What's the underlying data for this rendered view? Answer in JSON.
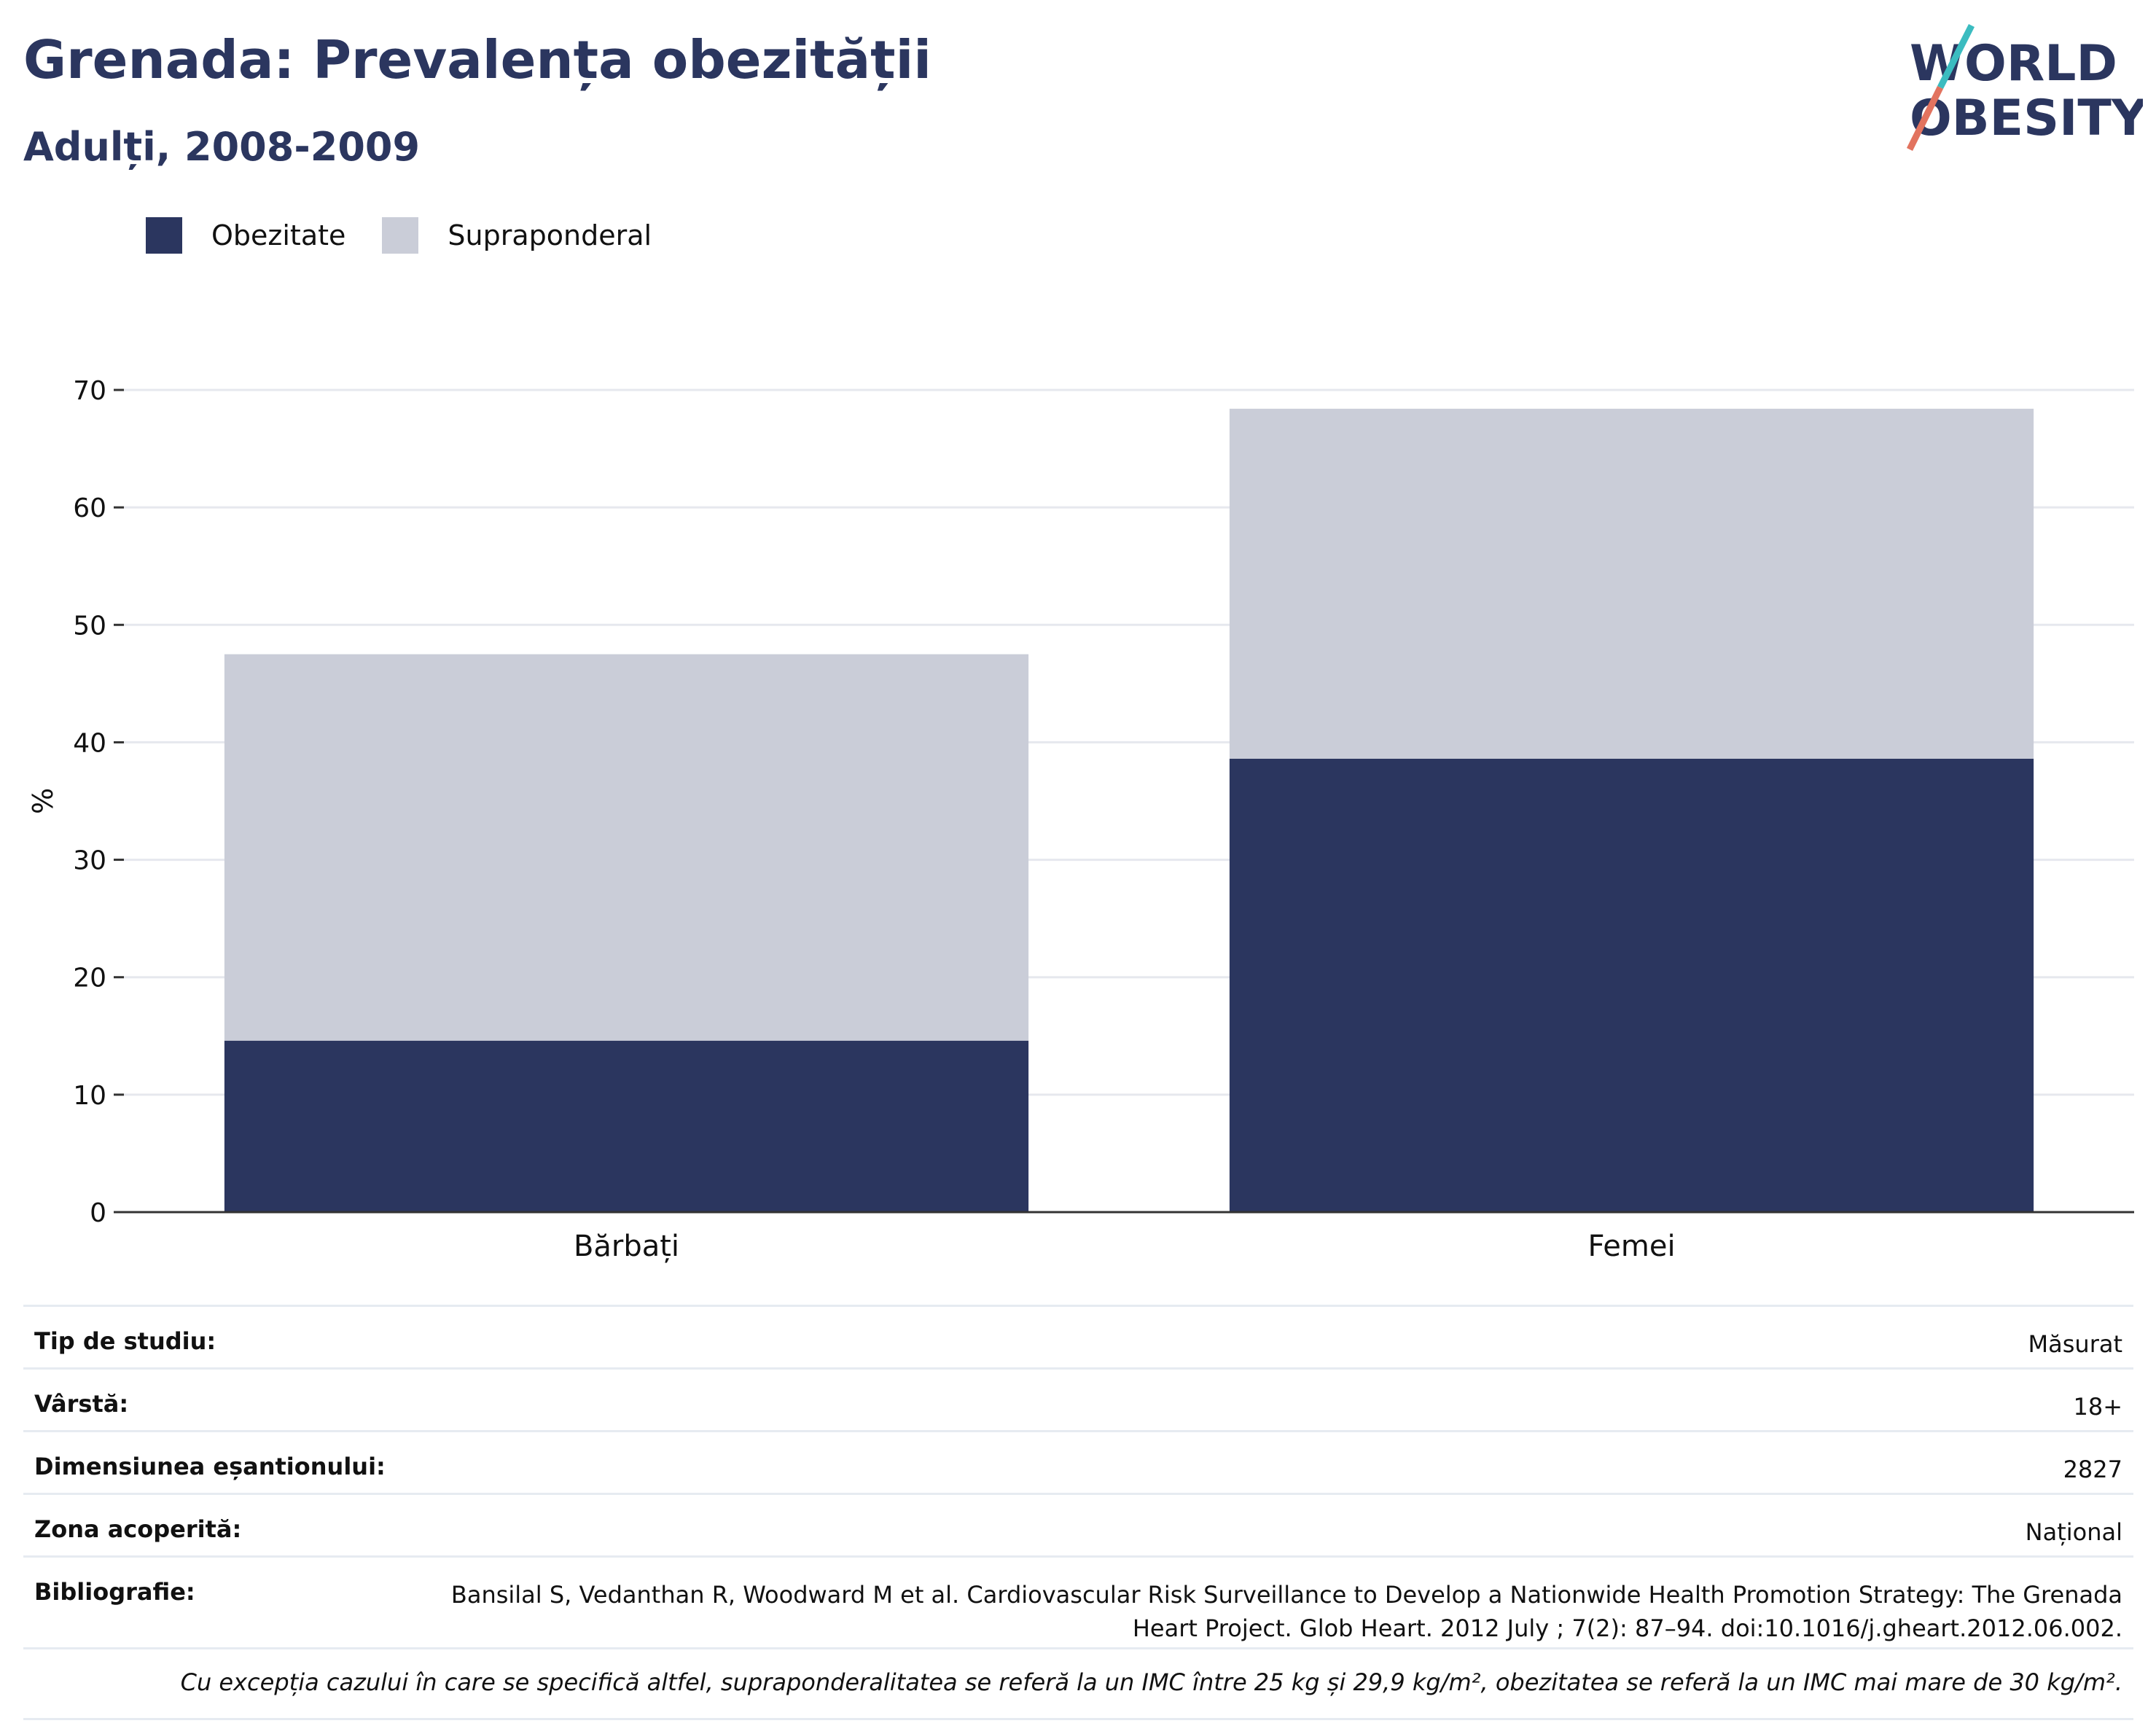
{
  "header": {
    "title": "Grenada: Prevalența obezității",
    "subtitle": "Adulți, 2008-2009",
    "logo_line1": "WORLD",
    "logo_line2": "OBESITY"
  },
  "legend": [
    {
      "label": "Obezitate",
      "color": "#2b365f"
    },
    {
      "label": "Supraponderal",
      "color": "#cacdd8"
    }
  ],
  "chart_data": {
    "type": "bar",
    "stacked": true,
    "categories": [
      "Bărbați",
      "Femei"
    ],
    "series": [
      {
        "name": "Obezitate",
        "color": "#2b365f",
        "values": [
          14.6,
          38.6
        ]
      },
      {
        "name": "Supraponderal",
        "color": "#cacdd8",
        "values": [
          32.9,
          29.8
        ]
      }
    ],
    "ylabel": "%",
    "ylim": [
      0,
      70
    ],
    "yticks": [
      0,
      10,
      20,
      30,
      40,
      50,
      60,
      70
    ],
    "grid": true,
    "legend_position": "top-left"
  },
  "info_table": {
    "rows": [
      {
        "label": "Tip de studiu:",
        "value": "Măsurat"
      },
      {
        "label": "Vârstă:",
        "value": "18+"
      },
      {
        "label": "Dimensiunea eșantionului:",
        "value": "2827"
      },
      {
        "label": "Zona acoperită:",
        "value": "Național"
      },
      {
        "label": "Bibliografie:",
        "value": "Bansilal S, Vedanthan R, Woodward M et al. Cardiovascular Risk Surveillance to Develop a Nationwide Health Promotion Strategy: The Grenada Heart Project. Glob Heart. 2012 July ; 7(2): 87–94. doi:10.1016/j.gheart.2012.06.002."
      }
    ],
    "note": "Cu excepția cazului în care se specifică altfel, supraponderalitatea se referă la un IMC între 25 kg și 29,9 kg/m², obezitatea se referă la un IMC mai mare de 30 kg/m²."
  }
}
